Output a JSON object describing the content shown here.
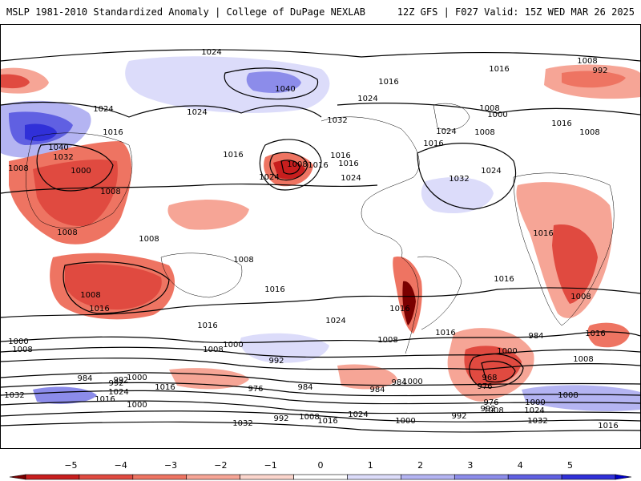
{
  "header": {
    "left_title": "MSLP 1981-2010 Standardized Anomaly | College of DuPage NEXLAB",
    "right_title": "12Z GFS | F027 Valid: 15Z WED MAR 26 2025"
  },
  "colors": {
    "neg5": "#8b0000",
    "neg4": "#c81e1e",
    "neg3": "#e04a40",
    "neg2": "#f0806c",
    "neg1": "#f8b8a8",
    "pos1": "#c8c8f8",
    "pos2": "#a0a0f0",
    "pos3": "#7070e8",
    "pos4": "#4040e0",
    "pos5": "#1010d0"
  },
  "colorbar": {
    "ticks": [
      "−5",
      "−4",
      "−3",
      "−2",
      "−1",
      "0",
      "1",
      "2",
      "3",
      "4",
      "5"
    ],
    "colors": [
      "#7a0000",
      "#c81e1e",
      "#e04a40",
      "#ee7462",
      "#f6a596",
      "#fbd5cc",
      "#ffffff",
      "#dcdcfa",
      "#b4b4f2",
      "#8c8cea",
      "#6060e2",
      "#3030d8",
      "#0000c8"
    ]
  },
  "isobar_labels": [
    "1024",
    "1008",
    "1016",
    "992",
    "1040",
    "1016",
    "1024",
    "1032",
    "1008",
    "1024",
    "1024",
    "1024",
    "1016",
    "1000",
    "1016",
    "1008",
    "1016",
    "1040",
    "1032",
    "1008",
    "1000",
    "1016",
    "1008",
    "1016",
    "1008",
    "1016",
    "1032",
    "1024",
    "1024",
    "1008",
    "1024",
    "1016",
    "1008",
    "1008",
    "1008",
    "1008",
    "1016",
    "1008",
    "1016",
    "1016",
    "1016",
    "1016",
    "1008",
    "1024",
    "1016",
    "1008",
    "1000",
    "992",
    "984",
    "1000",
    "968",
    "976",
    "1016",
    "1008",
    "992",
    "1000",
    "984",
    "976",
    "976",
    "984",
    "1000",
    "992",
    "984",
    "984",
    "1000",
    "992",
    "1016",
    "1032",
    "1024",
    "1016",
    "1000",
    "992",
    "1008",
    "1024",
    "1016",
    "1000",
    "992",
    "1008",
    "1024",
    "1032",
    "1032",
    "1016",
    "1008",
    "1000",
    "1008",
    "1016"
  ]
}
